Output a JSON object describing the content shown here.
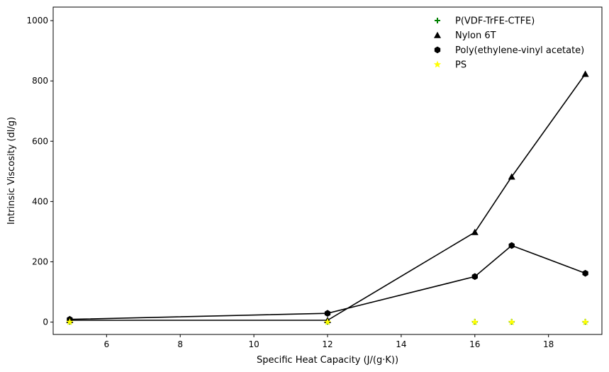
{
  "chart_data": {
    "type": "scatter",
    "title": "",
    "xlabel": "Specific Heat Capacity (J/(g·K))",
    "ylabel": "Intrinsic Viscosity (dl/g)",
    "xlim": [
      4.55,
      19.45
    ],
    "ylim": [
      -41,
      1045
    ],
    "xticks": [
      6,
      8,
      10,
      12,
      14,
      16,
      18
    ],
    "yticks": [
      0,
      200,
      400,
      600,
      800,
      1000
    ],
    "grid": false,
    "legend_position": "top-right",
    "series": [
      {
        "name": "P(VDF-TrFE-CTFE)",
        "marker": "plus",
        "color": "#008000",
        "line": false,
        "points": [
          [
            5,
            1
          ],
          [
            12,
            1
          ],
          [
            16,
            1
          ],
          [
            17,
            1
          ],
          [
            19,
            1
          ]
        ]
      },
      {
        "name": "Nylon 6T",
        "marker": "triangle",
        "color": "#000000",
        "line": true,
        "points": [
          [
            5,
            6
          ],
          [
            12,
            6
          ],
          [
            16,
            298
          ],
          [
            17,
            482
          ],
          [
            19,
            823
          ]
        ]
      },
      {
        "name": "Poly(ethylene-vinyl acetate)",
        "marker": "hexagon",
        "color": "#000000",
        "line": true,
        "points": [
          [
            5,
            9
          ],
          [
            12,
            29
          ],
          [
            16,
            151
          ],
          [
            17,
            254
          ],
          [
            19,
            162
          ]
        ]
      },
      {
        "name": "PS",
        "marker": "star",
        "color": "#ffff00",
        "line": false,
        "points": [
          [
            5,
            0
          ],
          [
            12,
            0
          ],
          [
            16,
            0
          ],
          [
            17,
            0
          ],
          [
            19,
            0
          ]
        ]
      }
    ]
  }
}
